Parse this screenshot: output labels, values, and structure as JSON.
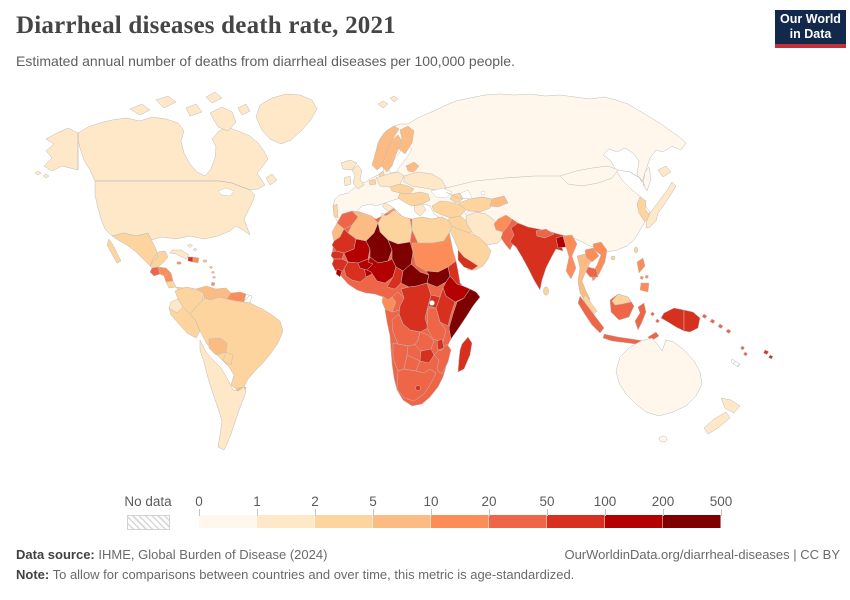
{
  "header": {
    "title": "Diarrheal diseases death rate, 2021",
    "subtitle": "Estimated annual number of deaths from diarrheal diseases per 100,000 people.",
    "logo_line1": "Our World",
    "logo_line2": "in Data"
  },
  "colors": {
    "owid-navy": "#12294b",
    "owid-red": "#c0313c"
  },
  "legend": {
    "no_data_label": "No data",
    "tick_labels": [
      "0",
      "1",
      "2",
      "5",
      "10",
      "20",
      "50",
      "100",
      "200",
      "500"
    ]
  },
  "footer": {
    "source_label": "Data source:",
    "source_text": " IHME, Global Burden of Disease (2024)",
    "right_text": "OurWorldinData.org/diarrheal-diseases | CC BY",
    "note_label": "Note:",
    "note_text": " To allow for comparisons between countries and over time, this metric is age-standardized."
  },
  "chart_data": {
    "type": "choropleth_map",
    "title": "Diarrheal diseases death rate, 2021",
    "unit": "deaths per 100,000 people",
    "year": 2021,
    "bin_edges": [
      0,
      1,
      2,
      5,
      10,
      20,
      50,
      100,
      200,
      500
    ],
    "palette": [
      "#fff7ec",
      "#fee8c8",
      "#fdd49e",
      "#fdbb84",
      "#fc8d59",
      "#ef6548",
      "#d7301f",
      "#b30000",
      "#7f0000"
    ],
    "no_data_fill": "hatched",
    "legend_position": "bottom",
    "regions": {
      "canada": 1,
      "alaska": 1,
      "aleutians": 1,
      "greenland": 1,
      "arctic_islands": 1,
      "newfoundland": 1,
      "usa": 1,
      "mexico": 2,
      "baja": 2,
      "guatemala": 5,
      "honduras": 4,
      "nicaragua": 4,
      "costa_rica": 2,
      "panama": 2,
      "cuba": 1,
      "jamaica": 4,
      "haiti": 6,
      "dominican_republic": 4,
      "puerto_rico": 3,
      "bahamas": 1,
      "lesser_antilles": 3,
      "trinidad": 4,
      "colombia": 2,
      "venezuela": 3,
      "guyana_suriname": 4,
      "french_guiana": "no_data",
      "ecuador": 1,
      "peru": 2,
      "brazil": 2,
      "bolivia": 3,
      "paraguay": 2,
      "uruguay": 3,
      "argentina_chile": 1,
      "eurasia_base": 0,
      "norway": 3,
      "sweden": 3,
      "finland": 3,
      "iceland": 1,
      "uk": 1,
      "ireland": 1,
      "denmark": 2,
      "germany_poland": 1,
      "benelux": 2,
      "central_europe": 2,
      "baltics": 3,
      "ukraine_belarus": 1,
      "balkans_romania": 2,
      "greece": 1,
      "italy": 1,
      "portugal": 2,
      "mongolia": 0,
      "sakhalin": 0,
      "uzbek_turkmen": 2,
      "kyrgyz_tajik": 3,
      "caucasus": 2,
      "turkey": 2,
      "syria_iraq": 2,
      "iran": 1,
      "afghanistan": 4,
      "pakistan": 5,
      "arabia": 2,
      "yemen": 6,
      "africa_base": 5,
      "morocco": 5,
      "western_sahara": 3,
      "algeria": 3,
      "tunisia": 4,
      "libya": 2,
      "egypt": 2,
      "mauritania": 6,
      "mali": 7,
      "niger": 8,
      "chad": 8,
      "sudan": 4,
      "eritrea_djibouti": 6,
      "senegal": 6,
      "guinea": 6,
      "sierra_leone": 7,
      "ivory_ghana": 6,
      "togo_benin": 7,
      "burkina_faso": 7,
      "nigeria": 7,
      "cameroon": 6,
      "central_african_republic": 8,
      "south_sudan": 8,
      "ethiopia": 7,
      "somalia": 8,
      "kenya": 6,
      "uganda": 6,
      "gabon": 4,
      "congo": 5,
      "drc": 6,
      "tanzania": 5,
      "angola": 5,
      "zambia": 5,
      "malawi": 6,
      "mozambique": 5,
      "zimbabwe": 6,
      "botswana": 5,
      "namibia": 5,
      "south_africa": 5,
      "lesotho": 6,
      "madagascar": 6,
      "india": 6,
      "nepal": 5,
      "bangladesh": 7,
      "sri_lanka": 2,
      "myanmar": 4,
      "thailand": 3,
      "laos": 4,
      "vietnam": 4,
      "cambodia": 5,
      "malaysia": 2,
      "korea": 2,
      "japan": 1,
      "taiwan": 2,
      "hainan": 2,
      "philippines": 4,
      "sumatra": 5,
      "java": 5,
      "kalimantan": 5,
      "malaysia_borneo": 2,
      "sulawesi": 5,
      "moluccas": 5,
      "papua_indonesia": 6,
      "papua_new_guinea": 6,
      "timor": 5,
      "australia": 0,
      "tasmania": 0,
      "new_zealand": 1,
      "solomon_islands": 5,
      "vanuatu": 5,
      "fiji": 6,
      "new_caledonia": "no_data"
    }
  }
}
